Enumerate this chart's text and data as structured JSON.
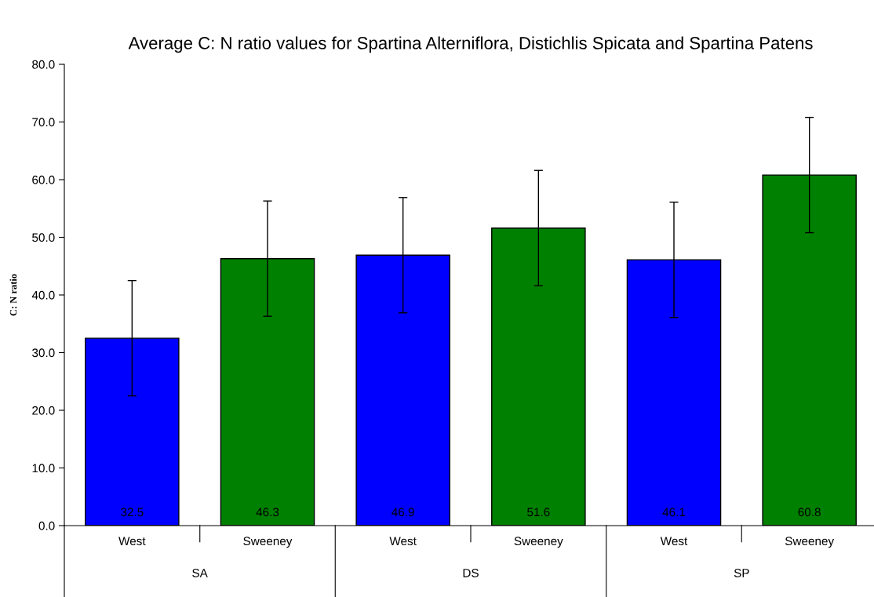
{
  "chart_data": {
    "type": "bar",
    "title": "Average C: N ratio values for Spartina Alterniflora, Distichlis Spicata and Spartina Patens",
    "ylabel": "C: N ratio",
    "categories": [
      "West",
      "Sweeney",
      "West",
      "Sweeney",
      "West",
      "Sweeney"
    ],
    "values": [
      32.5,
      46.3,
      46.9,
      51.6,
      46.1,
      60.8
    ],
    "colors": [
      "#0000ff",
      "#008000",
      "#0000ff",
      "#008000",
      "#0000ff",
      "#008000"
    ],
    "errors": [
      10,
      10,
      10,
      10,
      10,
      10
    ],
    "data_labels": true,
    "ylim": [
      0,
      80
    ],
    "yticks": [
      {
        "value": 0,
        "label": "0.0"
      },
      {
        "value": 10,
        "label": "10.0"
      },
      {
        "value": 20,
        "label": "20.0"
      },
      {
        "value": 30,
        "label": "30.0"
      },
      {
        "value": 40,
        "label": "40.0"
      },
      {
        "value": 50,
        "label": "50.0"
      },
      {
        "value": 60,
        "label": "60.0"
      },
      {
        "value": 70,
        "label": "70.0"
      },
      {
        "value": 80,
        "label": "80.0"
      }
    ],
    "annotations": [
      "SA",
      "DS",
      "SP"
    ],
    "grid": false
  }
}
